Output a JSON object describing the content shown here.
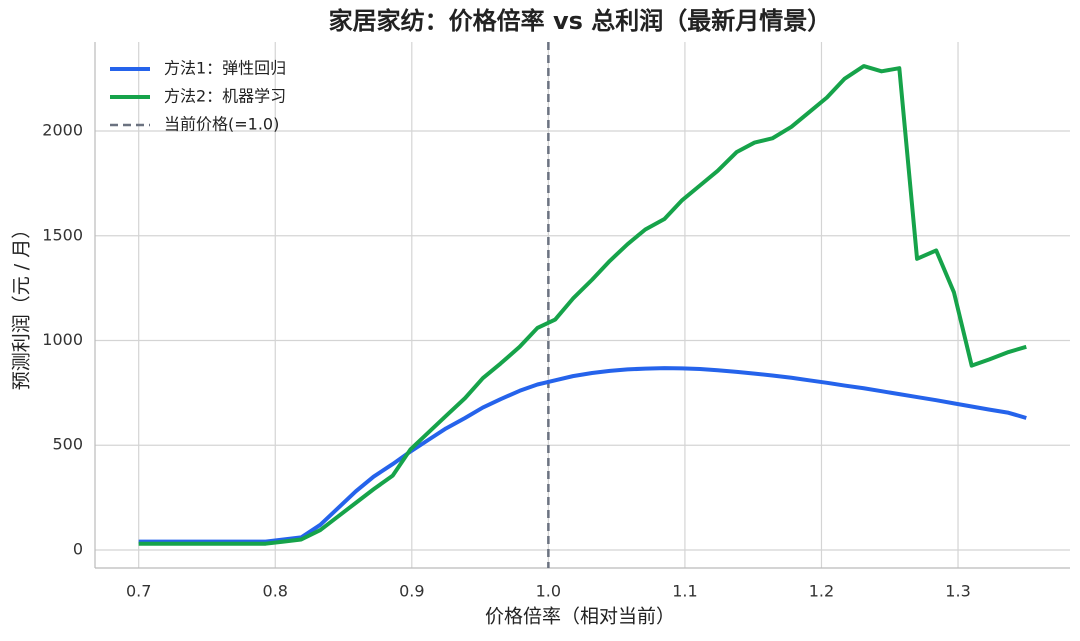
{
  "chart_data": {
    "type": "line",
    "title": "家居家纺：价格倍率 vs 总利润（最新月情景）",
    "x_label": "价格倍率（相对当前）",
    "y_label": "预测利润（元 / 月）",
    "x": [
      0.7,
      0.713,
      0.727,
      0.74,
      0.753,
      0.766,
      0.78,
      0.793,
      0.806,
      0.819,
      0.833,
      0.846,
      0.859,
      0.872,
      0.886,
      0.899,
      0.912,
      0.925,
      0.939,
      0.952,
      0.965,
      0.979,
      0.992,
      1.005,
      1.018,
      1.032,
      1.045,
      1.058,
      1.071,
      1.085,
      1.098,
      1.111,
      1.124,
      1.138,
      1.151,
      1.164,
      1.178,
      1.191,
      1.204,
      1.217,
      1.231,
      1.244,
      1.257,
      1.27,
      1.284,
      1.297,
      1.31,
      1.323,
      1.337,
      1.35
    ],
    "series": [
      {
        "name": "方法1：弹性回归",
        "color": "#2563eb",
        "values": [
          40,
          40,
          40,
          40,
          40,
          40,
          40,
          40,
          50,
          60,
          120,
          200,
          280,
          350,
          410,
          470,
          525,
          580,
          630,
          680,
          720,
          760,
          790,
          810,
          830,
          845,
          855,
          862,
          866,
          868,
          867,
          864,
          858,
          850,
          842,
          833,
          822,
          810,
          798,
          785,
          772,
          758,
          744,
          730,
          715,
          700,
          685,
          670,
          655,
          630
        ]
      },
      {
        "name": "方法2：机器学习",
        "color": "#16a34a",
        "values": [
          30,
          30,
          30,
          30,
          30,
          30,
          30,
          30,
          40,
          50,
          95,
          160,
          225,
          290,
          355,
          480,
          560,
          640,
          725,
          820,
          890,
          970,
          1060,
          1100,
          1200,
          1290,
          1380,
          1460,
          1530,
          1580,
          1670,
          1740,
          1810,
          1900,
          1945,
          1965,
          2020,
          2090,
          2160,
          2250,
          2310,
          2285,
          2300,
          1390,
          1430,
          1230,
          880,
          910,
          945,
          970
        ]
      }
    ],
    "vline": {
      "name": "当前价格(=1.0)",
      "x": 1.0,
      "color": "#6b7280"
    },
    "xlim": [
      0.668,
      1.382
    ],
    "ylim": [
      -86,
      2425
    ],
    "xticks": [
      0.7,
      0.8,
      0.9,
      {
        "value": 1,
        "label": "1.0"
      },
      1.1,
      1.2,
      1.3
    ],
    "yticks": [
      0,
      500,
      1000,
      1500,
      2000
    ],
    "grid": true,
    "legend": "upper left"
  }
}
